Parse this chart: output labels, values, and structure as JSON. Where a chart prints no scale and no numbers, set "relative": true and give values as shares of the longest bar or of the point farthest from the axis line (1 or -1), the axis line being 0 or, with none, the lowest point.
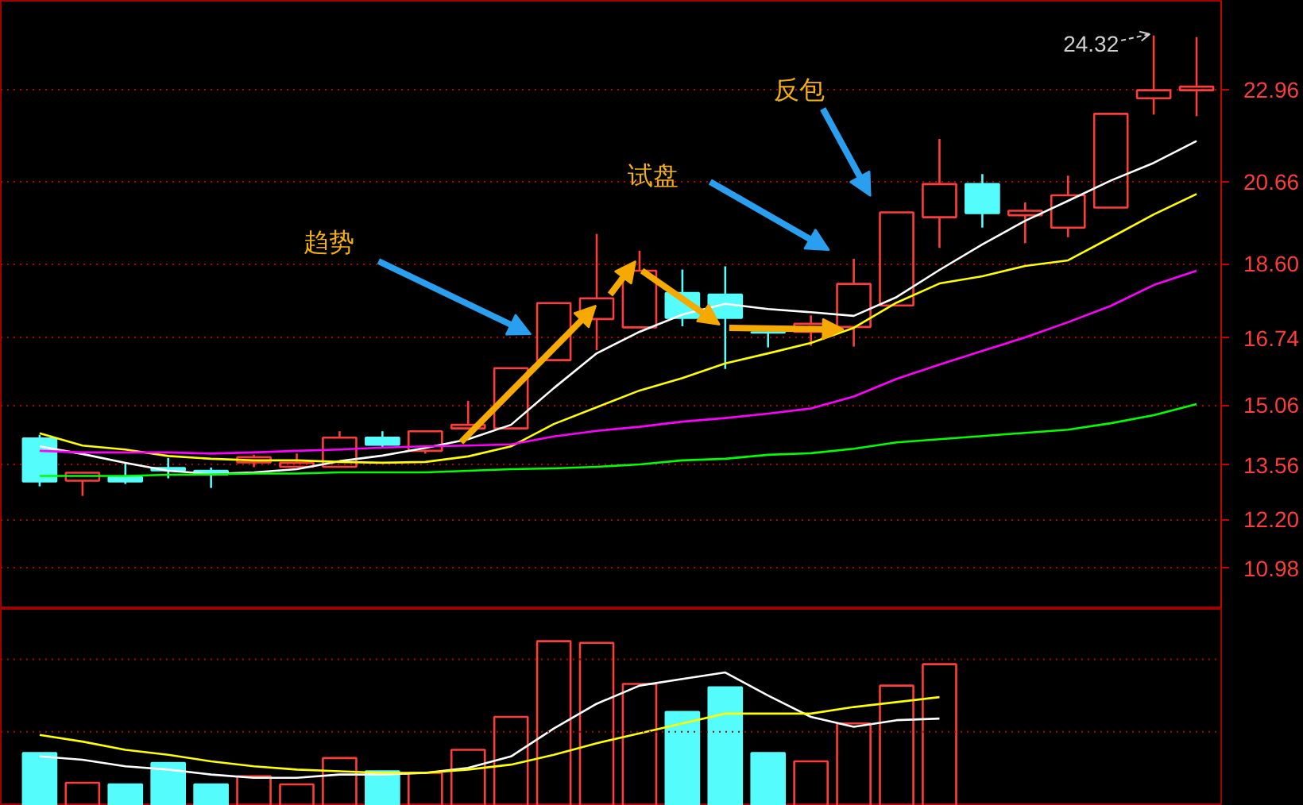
{
  "chart_data": [
    {
      "type": "candlestick",
      "categories": [
        null,
        null,
        null,
        null,
        null,
        null,
        null,
        null,
        null,
        null,
        null,
        null,
        null,
        null,
        null,
        null,
        null,
        null,
        null,
        null,
        null,
        null,
        null,
        null,
        null,
        null,
        null,
        null
      ],
      "ohlc": [
        [
          14.23,
          14.32,
          13.03,
          13.15
        ],
        [
          13.17,
          13.37,
          12.79,
          13.37
        ],
        [
          13.26,
          13.63,
          13.09,
          13.15
        ],
        [
          13.49,
          13.74,
          13.23,
          13.43
        ],
        [
          13.42,
          13.5,
          12.99,
          13.33
        ],
        [
          13.63,
          13.82,
          13.51,
          13.76
        ],
        [
          13.52,
          13.85,
          13.52,
          13.62
        ],
        [
          13.52,
          14.41,
          13.52,
          14.25
        ],
        [
          14.25,
          14.41,
          14.0,
          14.07
        ],
        [
          13.92,
          14.41,
          13.85,
          14.41
        ],
        [
          14.48,
          15.17,
          14.45,
          14.57
        ],
        [
          14.48,
          15.99,
          14.48,
          15.99
        ],
        [
          16.19,
          17.62,
          16.19,
          17.62
        ],
        [
          17.22,
          19.35,
          16.44,
          17.74
        ],
        [
          17.01,
          18.93,
          17.01,
          18.43
        ],
        [
          17.87,
          18.46,
          17.04,
          17.25
        ],
        [
          17.83,
          18.54,
          15.97,
          17.25
        ],
        [
          16.89,
          16.94,
          16.51,
          16.88
        ],
        [
          16.9,
          17.31,
          16.55,
          17.1
        ],
        [
          17.02,
          18.73,
          16.53,
          18.1
        ],
        [
          17.56,
          19.89,
          17.56,
          19.89
        ],
        [
          19.77,
          21.73,
          19.0,
          20.6
        ],
        [
          20.6,
          20.85,
          19.51,
          19.87
        ],
        [
          19.82,
          20.14,
          19.12,
          19.93
        ],
        [
          19.51,
          20.81,
          19.27,
          20.32
        ],
        [
          20.01,
          22.36,
          20.01,
          22.36
        ],
        [
          22.75,
          24.32,
          22.34,
          22.95
        ],
        [
          22.95,
          24.28,
          22.3,
          23.04
        ]
      ],
      "colors": [
        "#54fcfc",
        "#ff3c3c",
        "#54fcfc",
        "#54fcfc",
        "#54fcfc",
        "#ff3c3c",
        "#ff3c3c",
        "#ff3c3c",
        "#54fcfc",
        "#ff3c3c",
        "#ff3c3c",
        "#ff3c3c",
        "#ff3c3c",
        "#ff3c3c",
        "#ff3c3c",
        "#54fcfc",
        "#54fcfc",
        "#54fcfc",
        "#ff3c3c",
        "#ff3c3c",
        "#ff3c3c",
        "#ff3c3c",
        "#54fcfc",
        "#ff3c3c",
        "#ff3c3c",
        "#ff3c3c",
        "#ff3c3c",
        "#ff3c3c"
      ],
      "series": [
        {
          "type": "line",
          "color": "#ffffff",
          "values": [
            14.03,
            13.84,
            13.62,
            13.42,
            13.34,
            13.38,
            13.46,
            13.66,
            13.8,
            13.99,
            14.21,
            14.57,
            15.49,
            16.36,
            16.9,
            17.33,
            17.6,
            17.47,
            17.39,
            17.3,
            17.77,
            18.45,
            19.09,
            19.68,
            20.18,
            20.69,
            21.13,
            21.68
          ]
        },
        {
          "type": "line",
          "color": "#ffff00",
          "values": [
            14.36,
            14.05,
            13.95,
            13.79,
            13.72,
            13.68,
            13.68,
            13.64,
            13.62,
            13.64,
            13.78,
            14.03,
            14.59,
            15.01,
            15.43,
            15.74,
            16.11,
            16.36,
            16.62,
            17.0,
            17.63,
            18.11,
            18.29,
            18.55,
            18.69,
            19.26,
            19.84,
            20.35
          ]
        },
        {
          "type": "line",
          "color": "#ff00ff",
          "values": [
            13.92,
            13.88,
            13.88,
            13.88,
            13.85,
            13.88,
            13.92,
            13.95,
            14.0,
            14.03,
            14.05,
            14.08,
            14.28,
            14.42,
            14.52,
            14.65,
            14.74,
            14.85,
            14.98,
            15.28,
            15.72,
            16.08,
            16.42,
            16.76,
            17.14,
            17.55,
            18.07,
            18.43
          ]
        },
        {
          "type": "line",
          "color": "#00ff00",
          "values": [
            13.29,
            13.29,
            13.29,
            13.32,
            13.33,
            13.35,
            13.35,
            13.38,
            13.38,
            13.38,
            13.42,
            13.46,
            13.48,
            13.52,
            13.58,
            13.68,
            13.72,
            13.82,
            13.86,
            13.97,
            14.13,
            14.21,
            14.29,
            14.37,
            14.45,
            14.61,
            14.81,
            15.09
          ]
        }
      ],
      "ylim": [
        9.96,
        25.19
      ],
      "yticks": [
        22.96,
        20.66,
        {
          "value": 18.6,
          "label": "18.60"
        },
        16.74,
        15.06,
        13.56,
        {
          "value": 12.2,
          "label": "12.20"
        },
        10.98
      ],
      "grid": "y",
      "tick_labels": "y",
      "annotations": [
        "趋势",
        "试盘",
        "反包",
        "24.32"
      ]
    },
    {
      "type": "bar",
      "relative": true,
      "categories": [
        null,
        null,
        null,
        null,
        null,
        null,
        null,
        null,
        null,
        null,
        null,
        null,
        null,
        null,
        null,
        null,
        null,
        null,
        null,
        null,
        null,
        null,
        null,
        null,
        null,
        null,
        null,
        null
      ],
      "series": [
        {
          "values": [
            0.32,
            0.14,
            0.13,
            0.26,
            0.13,
            0.18,
            0.13,
            0.29,
            0.21,
            0.2,
            0.34,
            0.54,
            1,
            0.99,
            0.74,
            0.57,
            0.72,
            0.32,
            0.27,
            0.5,
            0.73,
            0.86,
            null,
            null,
            null,
            null,
            null,
            null
          ],
          "colors": [
            "#54fcfc",
            "#ff3c3c",
            "#54fcfc",
            "#54fcfc",
            "#54fcfc",
            "#ff3c3c",
            "#ff3c3c",
            "#ff3c3c",
            "#54fcfc",
            "#ff3c3c",
            "#ff3c3c",
            "#ff3c3c",
            "#ff3c3c",
            "#ff3c3c",
            "#ff3c3c",
            "#54fcfc",
            "#54fcfc",
            "#54fcfc",
            "#ff3c3c",
            "#ff3c3c",
            "#ff3c3c",
            "#ff3c3c",
            "#54fcfc",
            "#ff3c3c",
            "#ff3c3c",
            "#ff3c3c",
            "#ff3c3c",
            "#ff3c3c"
          ]
        },
        {
          "type": "line",
          "color": "#ffffff",
          "values": [
            0.3,
            0.28,
            0.24,
            0.22,
            0.19,
            0.17,
            0.17,
            0.19,
            0.19,
            0.2,
            0.23,
            0.3,
            0.47,
            0.62,
            0.73,
            0.77,
            0.81,
            0.67,
            0.54,
            0.48,
            0.52,
            0.53,
            null,
            null,
            null,
            null,
            null,
            null
          ]
        },
        {
          "type": "line",
          "color": "#ffff00",
          "values": [
            0.43,
            0.39,
            0.34,
            0.31,
            0.27,
            0.24,
            0.22,
            0.21,
            0.2,
            0.2,
            0.22,
            0.25,
            0.31,
            0.38,
            0.44,
            0.5,
            0.56,
            0.56,
            0.56,
            0.6,
            0.63,
            0.66,
            null,
            null,
            null,
            null,
            null,
            null
          ]
        }
      ],
      "ref_lines": [
        {
          "axis": "y",
          "value": 0.45,
          "color": "#b40000",
          "line_style": "dotted"
        },
        {
          "axis": "y",
          "value": 0.89,
          "color": "#b40000",
          "line_style": "dotted"
        }
      ]
    }
  ]
}
